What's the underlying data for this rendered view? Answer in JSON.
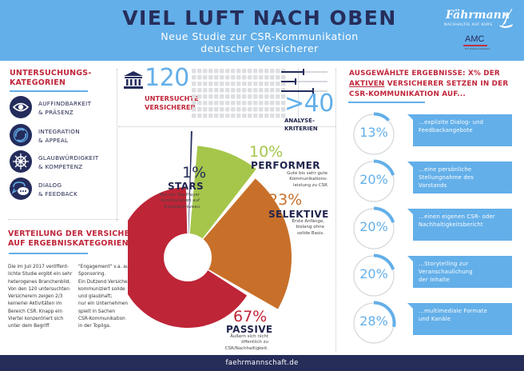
{
  "header": {
    "title": "VIEL LUFT NACH OBEN",
    "subtitle_line1": "Neue Studie zur CSR-Kommunikation",
    "subtitle_line2": "deutscher Versicherer",
    "logo_faehrmann": "Fährmann",
    "logo_faehrmann_tagline": "NACHHALTIG AUF KURS",
    "logo_amc": "AMC",
    "logo_amc_tagline": "Ein starkes Netzwerk",
    "colors": {
      "header_bg": "#63afe9",
      "title": "#262d5a",
      "accent_red": "#c0263a",
      "navy": "#242c5c"
    }
  },
  "categories": {
    "title_line1": "UNTERSUCHUNGS-",
    "title_line2": "KATEGORIEN",
    "items": [
      {
        "icon": "eye-icon",
        "line1": "AUFFINDBARKEIT",
        "line2": "& PRÄSENZ"
      },
      {
        "icon": "cycle-arrows-icon",
        "line1": "INTEGRATION",
        "line2": "& APPEAL"
      },
      {
        "icon": "ship-wheel-icon",
        "line1": "GLAUBWÜRDIGKEIT",
        "line2": "& KOMPETENZ"
      },
      {
        "icon": "chat-bubbles-icon",
        "line1": "DIALOG",
        "line2": "& FEEDBACK"
      }
    ]
  },
  "stats": {
    "insurers_count": "120",
    "insurers_label_line1": "UNTERSUCHTE",
    "insurers_label_line2": "VERSICHERER",
    "criteria_count": ">40",
    "criteria_label_line1": "ANALYSE-",
    "criteria_label_line2": "KRITERIEN"
  },
  "distribution": {
    "title_line1": "VERTEILUNG DER VERSICHERER",
    "title_line2": "AUF ERGEBNISKATEGORIEN",
    "text_col1": [
      "Die im Juli 2017 veröffent-",
      "lichte Studie ergibt ein sehr",
      "heterogenes Branchenbild.",
      "Von den 120 untersuchten",
      "Versicherern zeigen 2/3",
      "keinerlei Aktivitäten im",
      "Bereich CSR. Knapp ein",
      "Viertel konzentriert sich",
      "unter dem Begriff"
    ],
    "text_col2": [
      "\"Engagement\" v.a. auf",
      "Sponsoring.",
      "Ein Dutzend  Versicherer",
      "kommuniziert solide",
      "und glaubhaft;",
      "nur ein Unternehmen",
      "spielt in Sachen",
      "CSR-Kommunikation",
      "in der Topliga."
    ]
  },
  "chart_data": {
    "type": "pie",
    "title": "Verteilung der Versicherer auf Ergebniskategorien",
    "categories": [
      "Stars",
      "Performer",
      "Selektive",
      "Passive"
    ],
    "values": [
      1,
      10,
      23,
      67
    ],
    "unit": "%",
    "colors": [
      "#242c5c",
      "#a5c64b",
      "#c8702a",
      "#be2537"
    ],
    "labels": [
      {
        "pct": "1%",
        "name": "STARS",
        "desc": [
          "Nur ein Top-Player",
          "kommuniziert auf",
          "Exzellenzniveau"
        ]
      },
      {
        "pct": "10%",
        "name": "PERFORMER",
        "desc": [
          "Gute bis sehr gute",
          "Kommunikations-",
          "leistung zu CSR"
        ]
      },
      {
        "pct": "23%",
        "name": "SELEKTIVE",
        "desc": [
          "Erste Anfänge,",
          "bislang ohne",
          "solide Basis."
        ]
      },
      {
        "pct": "67%",
        "name": "PASSIVE",
        "desc": [
          "Äußern sich nicht",
          "öffentlich zu",
          "CSR/Nachhaltigkeit."
        ]
      }
    ],
    "legend": "none"
  },
  "results": {
    "title_line1": "AUSGEWÄHLTE ERGEBNISSE: X% DER",
    "title_line2_underlined": "AKTIVEN",
    "title_line2_rest": " VERSICHERER SETZEN IN DER",
    "title_line3": "CSR-KOMMUNIKATION AUF...",
    "items": [
      {
        "value": 13,
        "label": "13%",
        "text": [
          "...explizite Dialog- und",
          "Feedbackangebote"
        ]
      },
      {
        "value": 20,
        "label": "20%",
        "text": [
          "...eine persönliche",
          "Stellungnahme des",
          "Vorstands"
        ]
      },
      {
        "value": 20,
        "label": "20%",
        "text": [
          " ...einen eigenen CSR- oder",
          "Nachhaltigkeitsbericht"
        ]
      },
      {
        "value": 20,
        "label": "20%",
        "text": [
          "...Storytelling zur",
          "Veranschaulichung",
          "der Inhalte"
        ]
      },
      {
        "value": 28,
        "label": "28%",
        "text": [
          "...multimediale Formate",
          "und Kanäle"
        ]
      }
    ]
  },
  "footer": {
    "url": "faehrmannschaft.de"
  }
}
